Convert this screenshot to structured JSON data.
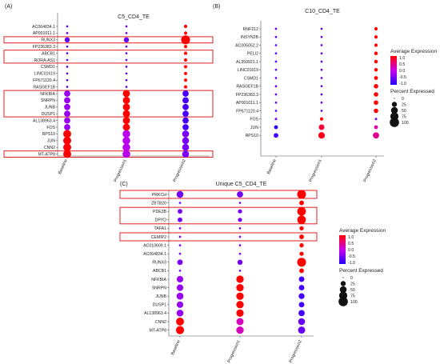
{
  "chart_data": [
    {
      "type": "dotplot",
      "panel_letter": "(A)",
      "title": "C5_CD4_TE",
      "xlabel": "",
      "ylabel": "",
      "categories": [
        "Baseline",
        "Progression1",
        "Progression2"
      ],
      "genes": [
        "AC064834.1",
        "AP001011.1",
        "RUNX3",
        "FP236383.3",
        "ABCB1",
        "RORA-AS1",
        "CSMD1",
        "LINC01619",
        "FP671120.4",
        "RASGEF1B",
        "NFKBIA",
        "SNRPN",
        "JUNB",
        "DUSP1",
        "AL138963.4",
        "FOS",
        "RPS10",
        "JUN",
        "CNN2",
        "MT-ATP8"
      ],
      "avg_expression": [
        [
          -0.6,
          -0.6,
          1.1
        ],
        [
          -0.6,
          -0.6,
          1.1
        ],
        [
          -0.6,
          -0.6,
          1.1
        ],
        [
          -0.6,
          -0.6,
          1.1
        ],
        [
          -0.6,
          -0.6,
          1.1
        ],
        [
          -0.6,
          -0.6,
          1.1
        ],
        [
          -0.6,
          -0.6,
          1.1
        ],
        [
          -0.6,
          -0.6,
          1.1
        ],
        [
          -0.6,
          -0.6,
          1.1
        ],
        [
          -0.6,
          -0.6,
          1.1
        ],
        [
          -0.3,
          1.0,
          -0.8
        ],
        [
          -0.3,
          1.0,
          -0.8
        ],
        [
          -0.3,
          1.0,
          -0.8
        ],
        [
          -0.3,
          1.0,
          -0.8
        ],
        [
          -0.3,
          1.0,
          -0.8
        ],
        [
          -0.3,
          1.0,
          -0.8
        ],
        [
          1.0,
          -0.1,
          -0.5
        ],
        [
          1.0,
          -0.1,
          -0.5
        ],
        [
          1.0,
          -0.1,
          -0.5
        ],
        [
          1.0,
          -0.1,
          -0.5
        ]
      ],
      "pct_expressed": [
        [
          2,
          2,
          8
        ],
        [
          2,
          2,
          8
        ],
        [
          25,
          25,
          90
        ],
        [
          2,
          2,
          8
        ],
        [
          2,
          2,
          8
        ],
        [
          2,
          2,
          8
        ],
        [
          2,
          2,
          8
        ],
        [
          2,
          2,
          8
        ],
        [
          2,
          2,
          8
        ],
        [
          2,
          2,
          8
        ],
        [
          40,
          55,
          40
        ],
        [
          40,
          55,
          40
        ],
        [
          40,
          55,
          40
        ],
        [
          40,
          55,
          40
        ],
        [
          40,
          55,
          40
        ],
        [
          40,
          55,
          40
        ],
        [
          70,
          65,
          50
        ],
        [
          70,
          65,
          50
        ],
        [
          70,
          65,
          50
        ],
        [
          70,
          65,
          50
        ]
      ],
      "highlighted_genes": [
        "RUNX3",
        "ABCB1",
        "RORA-AS1",
        "NFKBIA",
        "SNRPN",
        "JUNB",
        "DUSP1",
        "MT-ATP8"
      ]
    },
    {
      "type": "dotplot",
      "panel_letter": "(B)",
      "title": "C10_CD4_TE",
      "xlabel": "",
      "ylabel": "",
      "categories": [
        "Baseline",
        "Progression1",
        "Progression2"
      ],
      "genes": [
        "RNF212",
        "INSYN2B",
        "AC005052.2",
        "PELI2",
        "AL359921.1",
        "LINC01619",
        "CSMD1",
        "RASGEF1B",
        "FP236383.3",
        "AP001011.1",
        "FP671120.4",
        "FOS",
        "JUN",
        "RPS10"
      ],
      "avg_expression": [
        [
          -0.6,
          -0.6,
          1.0
        ],
        [
          -0.6,
          -0.6,
          1.0
        ],
        [
          -0.6,
          -0.6,
          1.0
        ],
        [
          -0.6,
          -0.6,
          1.0
        ],
        [
          -0.6,
          -0.6,
          1.0
        ],
        [
          -0.6,
          -0.6,
          1.0
        ],
        [
          -0.6,
          -0.6,
          1.0
        ],
        [
          -0.6,
          -0.6,
          1.0
        ],
        [
          -0.6,
          -0.6,
          1.0
        ],
        [
          -0.6,
          -0.6,
          1.0
        ],
        [
          -0.6,
          -0.6,
          1.0
        ],
        [
          -0.5,
          1.0,
          -0.5
        ],
        [
          -1.0,
          0.8,
          0.3
        ],
        [
          -0.8,
          0.9,
          0.4
        ]
      ],
      "pct_expressed": [
        [
          2,
          2,
          8
        ],
        [
          2,
          2,
          8
        ],
        [
          2,
          2,
          8
        ],
        [
          2,
          2,
          10
        ],
        [
          2,
          2,
          10
        ],
        [
          2,
          2,
          10
        ],
        [
          2,
          2,
          12
        ],
        [
          2,
          2,
          18
        ],
        [
          2,
          2,
          18
        ],
        [
          2,
          2,
          18
        ],
        [
          2,
          2,
          18
        ],
        [
          3,
          8,
          3
        ],
        [
          12,
          30,
          12
        ],
        [
          20,
          45,
          40
        ]
      ]
    },
    {
      "type": "dotplot",
      "panel_letter": "(C)",
      "title": "Unique C5_CD4_TE",
      "xlabel": "",
      "ylabel": "",
      "categories": [
        "Baseline",
        "Progression1",
        "Progression2"
      ],
      "genes": [
        "PRKCH",
        "ZBTB20",
        "PDE3B",
        "DPYD",
        "TAFA1",
        "CEMIP2",
        "AC010609.1",
        "AC064834.1",
        "RUNX3",
        "ABCB1",
        "NFKBIA",
        "SNRPN",
        "JUNB",
        "DUSP1",
        "AL138963.4",
        "CNN2",
        "MT-ATP8"
      ],
      "avg_expression": [
        [
          -0.5,
          -0.5,
          1.1
        ],
        [
          -0.5,
          -0.5,
          1.1
        ],
        [
          -0.5,
          -0.5,
          1.1
        ],
        [
          -0.5,
          -0.5,
          1.1
        ],
        [
          -0.5,
          -0.5,
          1.1
        ],
        [
          -0.5,
          -0.5,
          1.1
        ],
        [
          -0.5,
          -0.5,
          1.1
        ],
        [
          -0.5,
          -0.5,
          1.1
        ],
        [
          -0.5,
          -0.5,
          1.1
        ],
        [
          -0.5,
          -0.5,
          1.1
        ],
        [
          -0.3,
          1.0,
          -0.8
        ],
        [
          -0.3,
          1.0,
          -0.8
        ],
        [
          -0.3,
          1.0,
          -0.8
        ],
        [
          -0.3,
          1.0,
          -0.8
        ],
        [
          -0.3,
          1.0,
          -0.8
        ],
        [
          1.0,
          0.2,
          -0.6
        ],
        [
          1.0,
          0.2,
          -0.6
        ]
      ],
      "pct_expressed": [
        [
          50,
          40,
          90
        ],
        [
          2,
          2,
          20
        ],
        [
          20,
          15,
          85
        ],
        [
          20,
          15,
          85
        ],
        [
          2,
          2,
          15
        ],
        [
          2,
          2,
          20
        ],
        [
          2,
          2,
          15
        ],
        [
          2,
          2,
          15
        ],
        [
          30,
          25,
          90
        ],
        [
          2,
          2,
          20
        ],
        [
          45,
          60,
          30
        ],
        [
          45,
          60,
          30
        ],
        [
          50,
          60,
          35
        ],
        [
          45,
          60,
          30
        ],
        [
          50,
          60,
          40
        ],
        [
          70,
          55,
          50
        ],
        [
          75,
          60,
          55
        ]
      ],
      "highlighted_genes": [
        "PRKCH",
        "PDE3B",
        "DPYD",
        "CEMIP2"
      ]
    }
  ],
  "legend": {
    "avg_title": "Average Expression",
    "avg_ticks": [
      "1.0",
      "0.5",
      "0.0",
      "-0.5",
      "-1.0"
    ],
    "pct_title": "Percent Expressed",
    "pct_ticks": [
      "0",
      "25",
      "50",
      "75",
      "100"
    ],
    "color_high": "#ff0000",
    "color_mid": "#cc00ee",
    "color_low": "#2200ff"
  }
}
